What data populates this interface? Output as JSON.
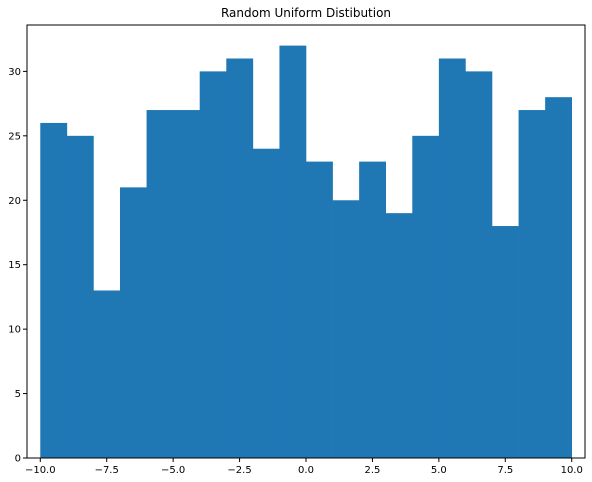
{
  "chart_data": {
    "type": "bar",
    "title": "Random Uniform Distibution",
    "xlabel": "",
    "ylabel": "",
    "xlim": [
      -10.5,
      10.5
    ],
    "ylim": [
      0,
      33.6
    ],
    "bin_edges": [
      -10.0,
      -9.0,
      -8.0,
      -7.0,
      -6.0,
      -5.0,
      -4.0,
      -3.0,
      -2.0,
      -1.0,
      0.0,
      1.0,
      2.0,
      3.0,
      4.0,
      5.0,
      6.0,
      7.0,
      8.0,
      9.0,
      10.0
    ],
    "values": [
      26,
      25,
      13,
      21,
      27,
      27,
      30,
      31,
      24,
      32,
      23,
      20,
      23,
      19,
      25,
      31,
      30,
      18,
      27,
      28
    ],
    "x_ticks": [
      -10.0,
      -7.5,
      -5.0,
      -2.5,
      0.0,
      2.5,
      5.0,
      7.5,
      10.0
    ],
    "x_tick_labels": [
      "−10.0",
      "−7.5",
      "−5.0",
      "−2.5",
      "0.0",
      "2.5",
      "5.0",
      "7.5",
      "10.0"
    ],
    "y_ticks": [
      0,
      5,
      10,
      15,
      20,
      25,
      30
    ],
    "y_tick_labels": [
      "0",
      "5",
      "10",
      "15",
      "20",
      "25",
      "30"
    ],
    "grid": false,
    "legend": "none",
    "bar_color": "#1f77b4"
  }
}
